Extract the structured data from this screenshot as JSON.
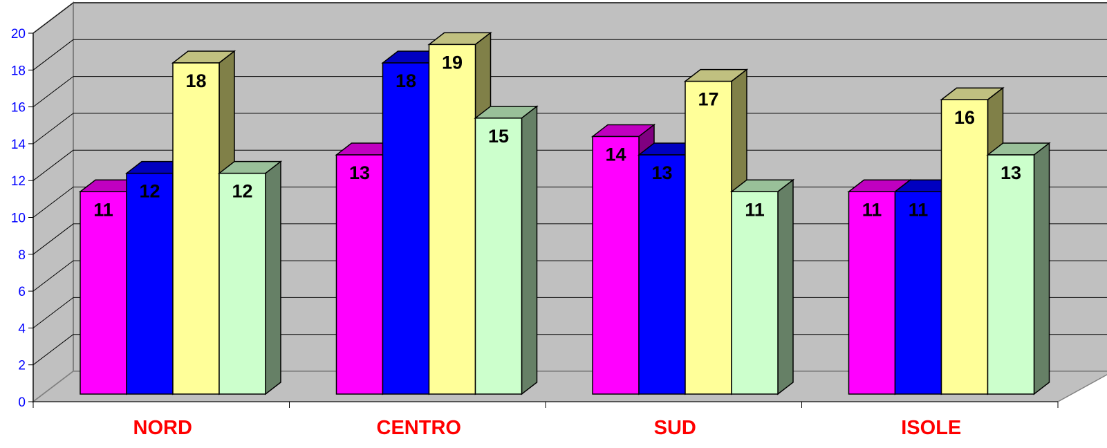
{
  "chart_data": {
    "type": "bar",
    "categories": [
      "NORD",
      "CENTRO",
      "SUD",
      "ISOLE"
    ],
    "series": [
      {
        "values": [
          11,
          13,
          14,
          11
        ],
        "color": "#ff00ff",
        "top_color": "#c000c0",
        "side_color": "#800080"
      },
      {
        "values": [
          12,
          18,
          13,
          11
        ],
        "color": "#0000ff",
        "top_color": "#0000c0",
        "side_color": "#000080"
      },
      {
        "values": [
          18,
          19,
          17,
          16
        ],
        "color": "#ffff99",
        "top_color": "#c0c080",
        "side_color": "#808048"
      },
      {
        "values": [
          12,
          15,
          11,
          13
        ],
        "color": "#ccffcc",
        "top_color": "#99c099",
        "side_color": "#668066"
      }
    ],
    "title": "",
    "xlabel": "",
    "ylabel": "",
    "ylim": [
      0,
      20
    ],
    "yticks": [
      0,
      2,
      4,
      6,
      8,
      10,
      12,
      14,
      16,
      18,
      20
    ],
    "grid": true,
    "legend": "none",
    "style": "3d-clustered-column",
    "colors": {
      "wall": "#c0c0c0",
      "floor": "#c0c0c0",
      "gridline": "#000000",
      "axis_labels": "#0000ff",
      "category_labels": "#ff0000"
    }
  }
}
